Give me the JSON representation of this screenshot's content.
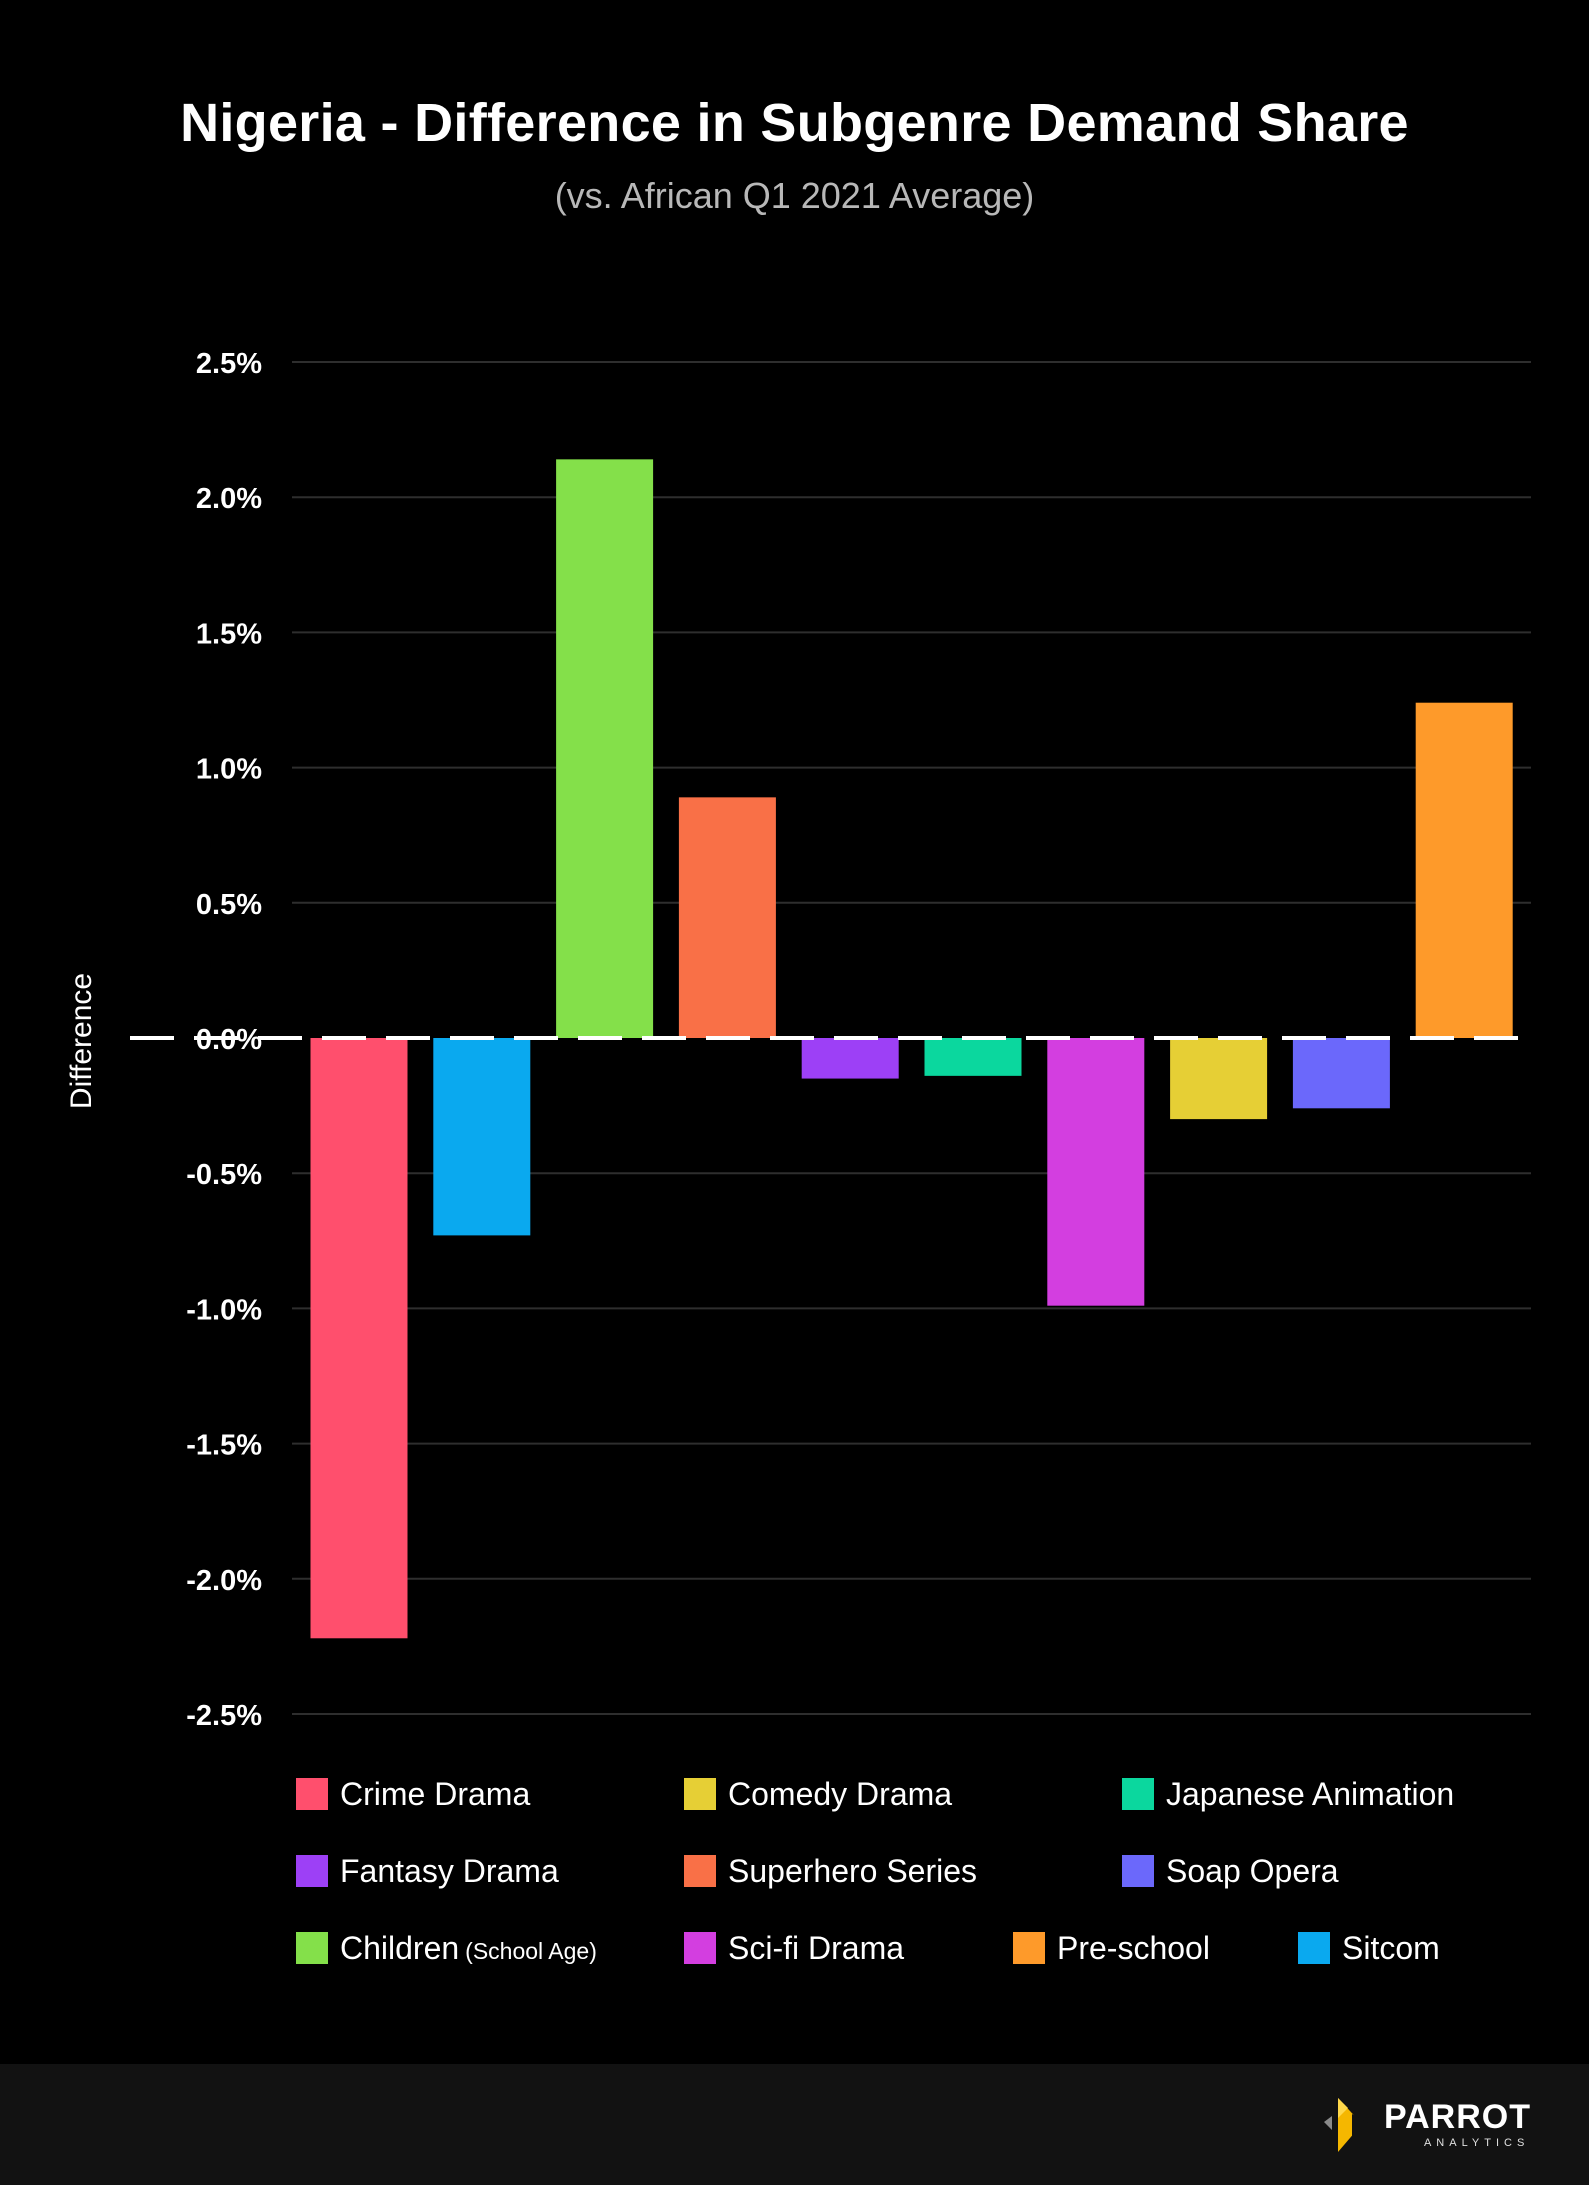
{
  "chart_data": {
    "type": "bar",
    "title": "Nigeria - Difference in Subgenre Demand Share",
    "subtitle": "(vs. African Q1 2021 Average)",
    "ylabel": "Difference",
    "xlabel": "",
    "ylim": [
      -2.5,
      2.5
    ],
    "yticks": [
      2.5,
      2.0,
      1.5,
      1.0,
      0.5,
      0.0,
      -0.5,
      -1.0,
      -1.5,
      -2.0,
      -2.5
    ],
    "ytick_labels": [
      "2.5%",
      "2.0%",
      "1.5%",
      "1.0%",
      "0.5%",
      "0.0%",
      "-0.5%",
      "-1.0%",
      "-1.5%",
      "-2.0%",
      "-2.5%"
    ],
    "grid": true,
    "categories": [
      "Crime Drama",
      "Sitcom",
      "Children (School Age)",
      "Superhero Series",
      "Fantasy Drama",
      "Japanese Animation",
      "Sci-fi Drama",
      "Comedy Drama",
      "Soap Opera",
      "Pre-school"
    ],
    "values": [
      -2.22,
      -0.73,
      2.14,
      0.89,
      -0.15,
      -0.14,
      -0.99,
      -0.3,
      -0.26,
      1.24
    ],
    "colors": [
      "#ff4f6d",
      "#0aa9ef",
      "#84e04a",
      "#f97047",
      "#9d40f6",
      "#0bd79e",
      "#d33ee0",
      "#e6cf35",
      "#6b68fb",
      "#fe9a2a"
    ],
    "legend": [
      {
        "label": "Crime Drama",
        "sub": "",
        "color": "#ff4f6d"
      },
      {
        "label": "Comedy Drama",
        "sub": "",
        "color": "#e6cf35"
      },
      {
        "label": "Japanese Animation",
        "sub": "",
        "color": "#0bd79e"
      },
      {
        "label": "Fantasy Drama",
        "sub": "",
        "color": "#9d40f6"
      },
      {
        "label": "Superhero Series",
        "sub": "",
        "color": "#f97047"
      },
      {
        "label": "Soap Opera",
        "sub": "",
        "color": "#6b68fb"
      },
      {
        "label": "Children",
        "sub": "(School Age)",
        "color": "#84e04a"
      },
      {
        "label": "Sci-fi Drama",
        "sub": "",
        "color": "#d33ee0"
      },
      {
        "label": "Pre-school",
        "sub": "",
        "color": "#fe9a2a"
      },
      {
        "label": "Sitcom",
        "sub": "",
        "color": "#0aa9ef"
      }
    ],
    "legend_position": "bottom"
  },
  "brand": {
    "name": "PARROT",
    "sub": "ANALYTICS",
    "accent": "#f5b700"
  }
}
